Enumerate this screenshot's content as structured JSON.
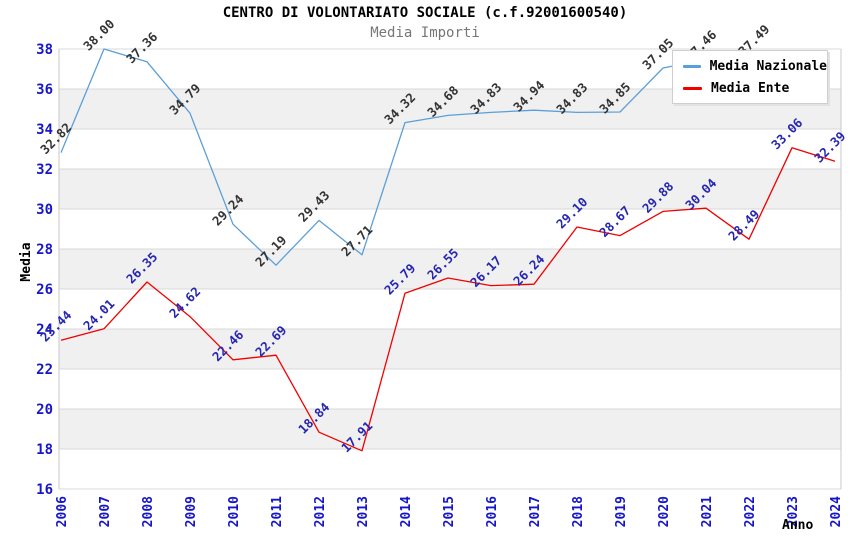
{
  "title": "CENTRO DI VOLONTARIATO SOCIALE (c.f.92001600540)",
  "subtitle": "Media Importi",
  "legend": {
    "items": [
      {
        "label": "Media Nazionale",
        "color": "#5b9fd8"
      },
      {
        "label": "Media Ente",
        "color": "#f20000"
      }
    ]
  },
  "chart_data": {
    "type": "line",
    "title": "CENTRO DI VOLONTARIATO SOCIALE (c.f.92001600540)",
    "subtitle": "Media Importi",
    "xlabel": "Anno",
    "ylabel": "Media",
    "x": [
      2006,
      2007,
      2008,
      2009,
      2010,
      2011,
      2012,
      2013,
      2014,
      2015,
      2016,
      2017,
      2018,
      2019,
      2020,
      2021,
      2022,
      2023,
      2024
    ],
    "series": [
      {
        "name": "Media Nazionale",
        "color": "#5b9fd8",
        "label_color": "#333333",
        "values": [
          32.82,
          38.0,
          37.36,
          34.79,
          29.24,
          27.19,
          29.43,
          27.71,
          34.32,
          34.68,
          34.83,
          34.94,
          34.83,
          34.85,
          37.05,
          37.46,
          37.49,
          null,
          null
        ]
      },
      {
        "name": "Media Ente",
        "color": "#f20000",
        "label_color": "#2626b0",
        "values": [
          23.44,
          24.01,
          26.35,
          24.62,
          22.46,
          22.69,
          18.84,
          17.91,
          25.79,
          26.55,
          26.17,
          26.24,
          29.1,
          28.67,
          29.88,
          30.04,
          28.49,
          33.06,
          32.39
        ]
      }
    ],
    "ylim": [
      16,
      38
    ],
    "ytick_step": 2,
    "grid": true,
    "banded_background": true,
    "legend_position": "top-right",
    "tick_color": "#1515cc",
    "band_color": "#f0f0f0",
    "gridline_color": "#d9d9d9",
    "border_color": "#c8c8c8"
  }
}
